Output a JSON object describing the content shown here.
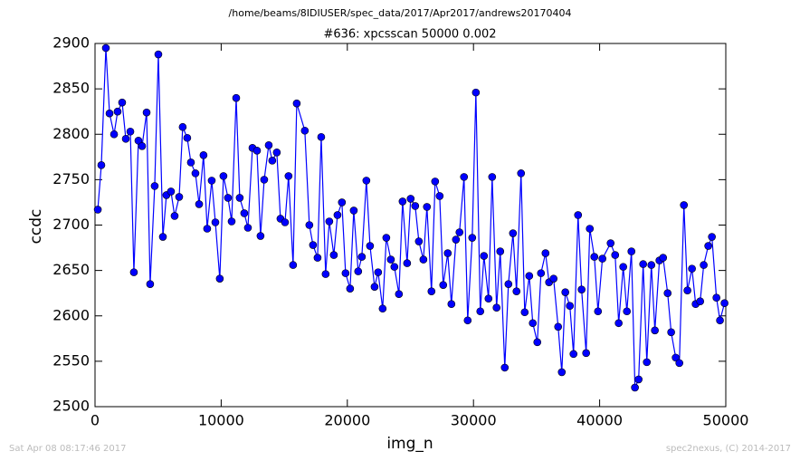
{
  "chart_data": {
    "type": "line",
    "subtitle": "/home/beams/8IDIUSER/spec_data/2017/Apr2017/andrews20170404",
    "title": "#636: xpcsscan 50000 0.002",
    "x_label": "img_n",
    "y_label": "ccdc",
    "footer_left": "Sat Apr 08 08:17:46 2017",
    "footer_right": "spec2nexus, (C) 2014-2017",
    "color": "#0000ff",
    "marker": true,
    "xlim": [
      0,
      50000
    ],
    "xticks": [
      0,
      10000,
      20000,
      30000,
      40000,
      50000
    ],
    "ylim": [
      2500,
      2900
    ],
    "yticks": [
      2500,
      2550,
      2600,
      2650,
      2700,
      2750,
      2800,
      2850,
      2900
    ],
    "x": [
      220,
      500,
      860,
      1150,
      1510,
      1790,
      2150,
      2440,
      2800,
      3080,
      3440,
      3730,
      4090,
      4370,
      4730,
      5020,
      5380,
      5660,
      6020,
      6310,
      6670,
      6950,
      7310,
      7600,
      7960,
      8250,
      8600,
      8890,
      9250,
      9540,
      9890,
      10180,
      10540,
      10830,
      11190,
      11470,
      11830,
      12120,
      12480,
      12840,
      13120,
      13410,
      13770,
      14050,
      14410,
      14700,
      15060,
      15340,
      15700,
      15990,
      16630,
      16990,
      17280,
      17640,
      17930,
      18280,
      18570,
      18930,
      19220,
      19570,
      19860,
      20220,
      20510,
      20860,
      21150,
      21510,
      21800,
      22160,
      22440,
      22800,
      23090,
      23450,
      23730,
      24090,
      24380,
      24740,
      25020,
      25380,
      25670,
      26030,
      26310,
      26670,
      26960,
      27320,
      27600,
      27960,
      28250,
      28610,
      28890,
      29250,
      29540,
      29900,
      30190,
      30540,
      30830,
      31190,
      31480,
      31830,
      32120,
      32480,
      32770,
      33130,
      33410,
      33770,
      34060,
      34420,
      34700,
      35060,
      35350,
      35710,
      35990,
      36350,
      36710,
      37000,
      37280,
      37640,
      37930,
      38290,
      38570,
      38930,
      39220,
      39580,
      39870,
      40220,
      40870,
      41230,
      41510,
      41870,
      42160,
      42520,
      42800,
      43090,
      43450,
      43740,
      44100,
      44380,
      44740,
      45030,
      45390,
      45670,
      46030,
      46320,
      46680,
      46960,
      47320,
      47610,
      47970,
      48250,
      48610,
      48900,
      49260,
      49540,
      49900
    ],
    "values": [
      2717,
      2766,
      2895,
      2823,
      2800,
      2825,
      2835,
      2795,
      2803,
      2648,
      2793,
      2787,
      2824,
      2635,
      2743,
      2888,
      2687,
      2733,
      2737,
      2710,
      2731,
      2808,
      2796,
      2769,
      2757,
      2723,
      2777,
      2696,
      2749,
      2703,
      2641,
      2754,
      2730,
      2704,
      2840,
      2730,
      2713,
      2697,
      2785,
      2782,
      2688,
      2750,
      2788,
      2771,
      2780,
      2707,
      2703,
      2754,
      2656,
      2834,
      2804,
      2700,
      2678,
      2664,
      2797,
      2646,
      2704,
      2667,
      2711,
      2725,
      2647,
      2630,
      2716,
      2649,
      2665,
      2749,
      2677,
      2632,
      2648,
      2608,
      2686,
      2662,
      2654,
      2624,
      2726,
      2658,
      2729,
      2721,
      2682,
      2662,
      2720,
      2627,
      2748,
      2732,
      2634,
      2669,
      2613,
      2684,
      2692,
      2753,
      2595,
      2686,
      2846,
      2605,
      2666,
      2619,
      2753,
      2609,
      2671,
      2543,
      2635,
      2691,
      2627,
      2757,
      2604,
      2644,
      2592,
      2571,
      2647,
      2669,
      2637,
      2641,
      2588,
      2538,
      2626,
      2611,
      2558,
      2711,
      2629,
      2559,
      2696,
      2665,
      2605,
      2663,
      2680,
      2667,
      2592,
      2654,
      2605,
      2671,
      2521,
      2530,
      2657,
      2549,
      2656,
      2584,
      2661,
      2664,
      2625,
      2582,
      2554,
      2548,
      2722,
      2628,
      2652,
      2613,
      2616,
      2656,
      2677,
      2687,
      2620,
      2595,
      2614
    ]
  }
}
